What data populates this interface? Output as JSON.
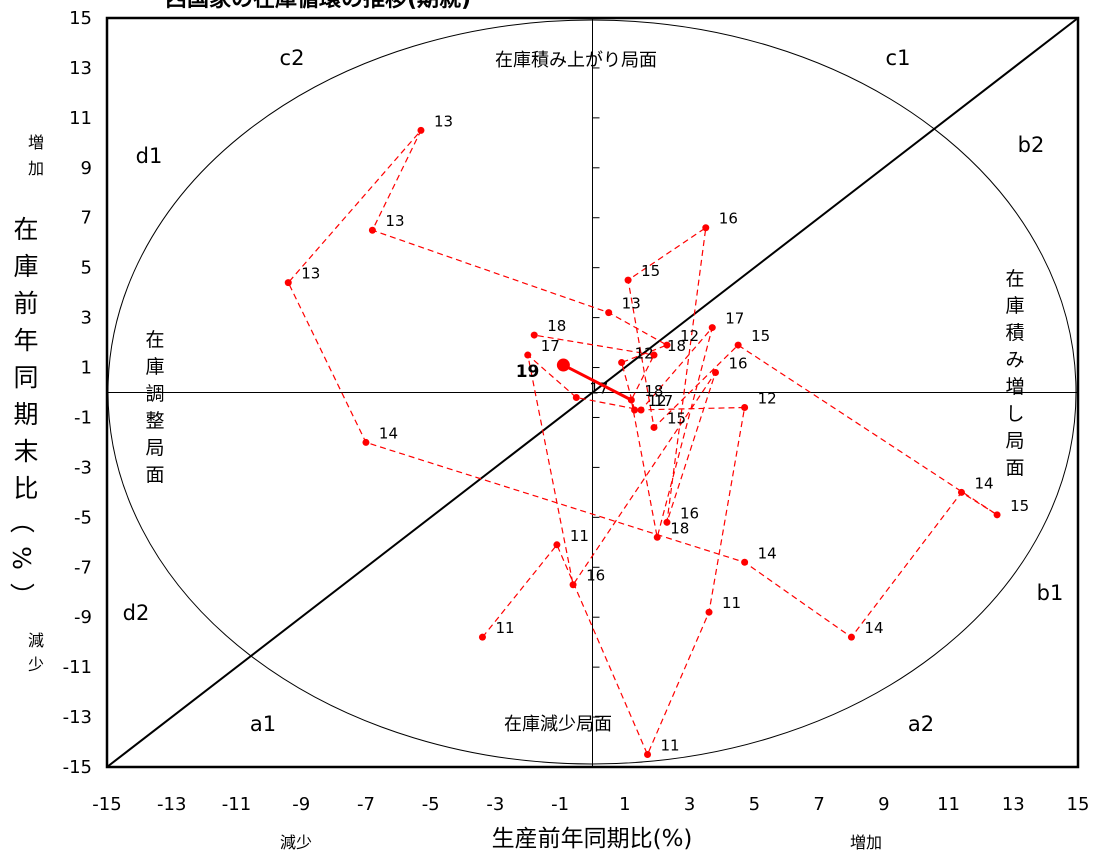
{
  "chart_data": {
    "type": "scatter",
    "title": "西国家の在庫循環の推移(期就)",
    "xlabel": "生産前年同期比(%)",
    "ylabel": "在庫前年同期末比（%）",
    "xlim": [
      -15,
      15
    ],
    "ylim": [
      -15,
      15
    ],
    "x_ticks": [
      "-15",
      "-13",
      "-11",
      "-9",
      "-7",
      "-5",
      "-3",
      "-1",
      "1",
      "3",
      "5",
      "7",
      "9",
      "11",
      "13",
      "15"
    ],
    "y_ticks": [
      "15",
      "13",
      "11",
      "9",
      "7",
      "5",
      "3",
      "1",
      "-1",
      "-3",
      "-5",
      "-7",
      "-9",
      "-11",
      "-13",
      "-15"
    ],
    "x_decrease_label": "減少",
    "x_increase_label": "増加",
    "y_increase_label": "増加",
    "y_decrease_label": "減少",
    "grid": false,
    "reference_line": "45-degree diagonal",
    "phase_labels": {
      "top": "在庫積み上がり局面",
      "bottom": "在庫減少局面",
      "left": "在庫調整局面",
      "right": "在庫積み増し局面"
    },
    "region_labels": [
      "c2",
      "c1",
      "d1",
      "b2",
      "d2",
      "b1",
      "a1",
      "a2"
    ],
    "latest_point": {
      "label": "19",
      "x": -0.9,
      "y": 1.1
    },
    "series": [
      {
        "points": [
          {
            "label": "11",
            "x": -3.4,
            "y": -9.8
          },
          {
            "label": "11",
            "x": -1.1,
            "y": -6.1
          },
          {
            "label": "11",
            "x": 1.7,
            "y": -14.5
          },
          {
            "label": "11",
            "x": 3.6,
            "y": -8.8
          },
          {
            "label": "12",
            "x": 4.7,
            "y": -0.6
          },
          {
            "label": "12",
            "x": 1.3,
            "y": -0.7
          },
          {
            "label": "12",
            "x": 0.9,
            "y": 1.2
          },
          {
            "label": "12",
            "x": 2.3,
            "y": 1.9
          },
          {
            "label": "13",
            "x": 0.5,
            "y": 3.2
          },
          {
            "label": "13",
            "x": -6.8,
            "y": 6.5
          },
          {
            "label": "13",
            "x": -5.3,
            "y": 10.5
          },
          {
            "label": "13",
            "x": -9.4,
            "y": 4.4
          },
          {
            "label": "14",
            "x": -7.0,
            "y": -2.0
          },
          {
            "label": "14",
            "x": 4.7,
            "y": -6.8
          },
          {
            "label": "14",
            "x": 8.0,
            "y": -9.8
          },
          {
            "label": "14",
            "x": 11.4,
            "y": -4.0
          },
          {
            "label": "15",
            "x": 12.5,
            "y": -4.9
          },
          {
            "label": "15",
            "x": 4.5,
            "y": 1.9
          },
          {
            "label": "15",
            "x": 1.9,
            "y": -1.4
          },
          {
            "label": "15",
            "x": 1.1,
            "y": 4.5
          },
          {
            "label": "16",
            "x": 3.5,
            "y": 6.6
          },
          {
            "label": "16",
            "x": 2.3,
            "y": -5.2
          },
          {
            "label": "16",
            "x": 3.8,
            "y": 0.8
          },
          {
            "label": "16",
            "x": -0.6,
            "y": -7.7
          },
          {
            "label": "17",
            "x": -2.0,
            "y": 1.5
          },
          {
            "label": "17",
            "x": -0.5,
            "y": -0.2
          },
          {
            "label": "17",
            "x": 1.5,
            "y": -0.7
          },
          {
            "label": "17",
            "x": 3.7,
            "y": 2.6
          },
          {
            "label": "18",
            "x": 2.0,
            "y": -5.8
          },
          {
            "label": "18",
            "x": 1.2,
            "y": -0.3
          },
          {
            "label": "18",
            "x": 1.9,
            "y": 1.5
          },
          {
            "label": "18",
            "x": -1.8,
            "y": 2.3
          }
        ]
      }
    ]
  }
}
